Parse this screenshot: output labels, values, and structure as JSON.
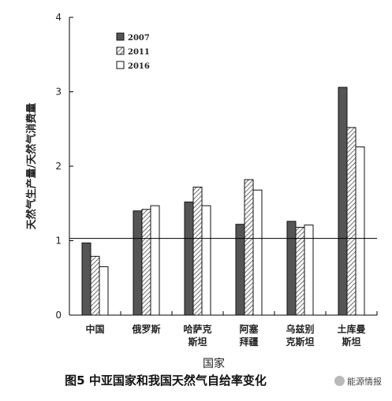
{
  "chart_data": {
    "type": "bar",
    "title": "",
    "ylabel": "天然气生产量/天然气消费量",
    "xlabel": "国家",
    "ylim": [
      0,
      4
    ],
    "yticks": [
      0,
      1,
      2,
      3,
      4
    ],
    "reference_line": 1.03,
    "categories": [
      [
        "中国"
      ],
      [
        "俄罗斯"
      ],
      [
        "哈萨克",
        "斯坦"
      ],
      [
        "阿塞",
        "拜疆"
      ],
      [
        "乌兹别",
        "克斯坦"
      ],
      [
        "土库曼",
        "斯坦"
      ]
    ],
    "series": [
      {
        "name": "2007",
        "fill": "dark-gray",
        "values": [
          0.97,
          1.4,
          1.52,
          1.22,
          1.26,
          3.06
        ]
      },
      {
        "name": "2011",
        "fill": "hatched",
        "values": [
          0.79,
          1.42,
          1.72,
          1.82,
          1.18,
          2.52
        ]
      },
      {
        "name": "2016",
        "fill": "white",
        "values": [
          0.65,
          1.47,
          1.47,
          1.68,
          1.21,
          2.26
        ]
      }
    ],
    "legend_position": "top-left",
    "grid": false
  },
  "caption": "图5   中亚国家和我国天然气自给率变化",
  "watermark": "能源情报",
  "colors": {
    "dark_bar": "#555555",
    "axis": "#000000"
  }
}
